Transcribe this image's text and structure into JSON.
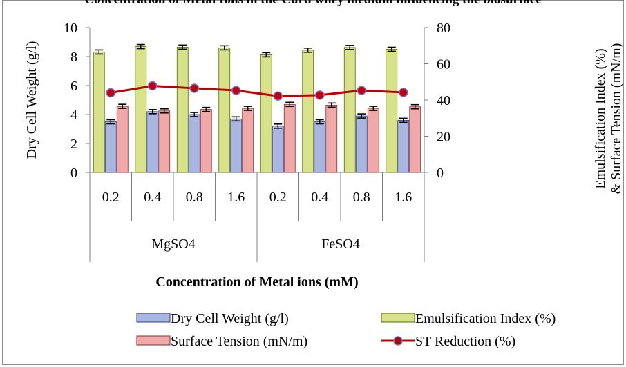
{
  "chart_data": {
    "type": "bar",
    "title": "Concentration of Metal Ions in the Curd whey medium influencing the biosurface",
    "xlabel": "Concentration of Metal ions (mM)",
    "ylabel_left": "Dry Cell Weight (g/l)",
    "ylabel_right_line1": "Emulsification Index (%)",
    "ylabel_right_line2": "& Surface Tension (mN/m)",
    "categories": [
      "0.2",
      "0.4",
      "0.8",
      "1.6",
      "0.2",
      "0.4",
      "0.8",
      "1.6"
    ],
    "groups": [
      {
        "label": "MgSO4",
        "span": 4
      },
      {
        "label": "FeSO4",
        "span": 4
      }
    ],
    "ylim_left": [
      0,
      10
    ],
    "yticks_left": [
      0,
      2,
      4,
      6,
      8,
      10
    ],
    "ylim_right": [
      0,
      80
    ],
    "yticks_right": [
      0,
      20,
      40,
      60,
      80
    ],
    "series": [
      {
        "name": "Emulsification Index (%)",
        "axis": "right",
        "kind": "bar",
        "color": "#d7e28a",
        "values": [
          66.5,
          69.5,
          69.2,
          68.8,
          65,
          67.5,
          69,
          68
        ]
      },
      {
        "name": "Dry Cell Weight (g/l)",
        "axis": "left",
        "kind": "bar",
        "color": "#a9b6e0",
        "values": [
          3.5,
          4.2,
          4.0,
          3.7,
          3.2,
          3.5,
          3.9,
          3.6
        ]
      },
      {
        "name": "Surface Tension (mN/m)",
        "axis": "right",
        "kind": "bar",
        "color": "#f0a9a9",
        "values": [
          36.5,
          34,
          34.8,
          35.4,
          37.6,
          37.2,
          35.4,
          36.3
        ]
      },
      {
        "name": "ST Reduction (%)",
        "axis": "right",
        "kind": "line",
        "color": "#c00000",
        "values": [
          44,
          47.8,
          46.5,
          45.3,
          42.2,
          42.7,
          45.3,
          44.2
        ]
      }
    ],
    "legend": [
      "Dry Cell Weight (g/l)",
      "Emulsification Index (%)",
      "Surface Tension (mN/m)",
      "ST Reduction (%)"
    ],
    "legend_position": "bottom",
    "grid": false,
    "error_bars": true
  }
}
